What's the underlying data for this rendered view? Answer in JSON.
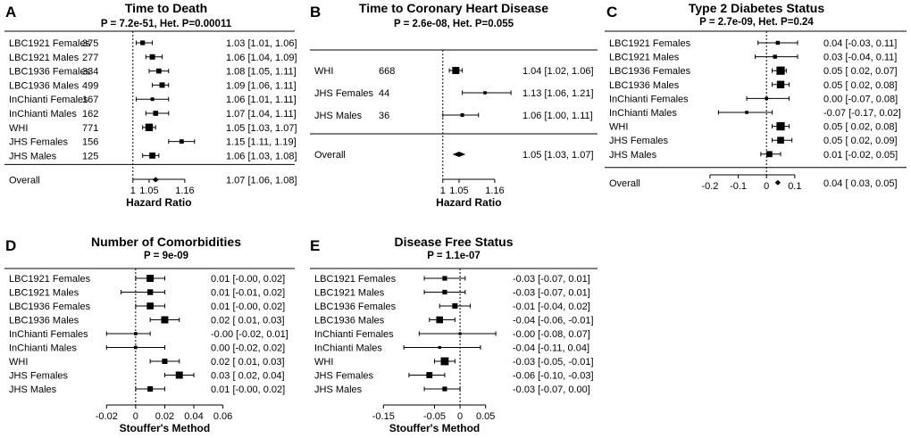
{
  "chart_data": [
    {
      "type": "forest",
      "label": "A",
      "title": "Time to Death",
      "subtitle": "P = 7.2e-51, Het. P=0.00011",
      "xlabel": "Hazard Ratio",
      "ticks": [
        "1",
        "1.05",
        "1.16"
      ],
      "tick_values": [
        1,
        1.05,
        1.16
      ],
      "xlim": [
        0.94,
        1.24
      ],
      "ref": 1,
      "show_n": true,
      "rows": [
        {
          "study": "LBC1921 Females",
          "n": "375",
          "est": 1.03,
          "lo": 1.01,
          "hi": 1.06,
          "text": "1.03 [1.01, 1.06]",
          "w": 0.4
        },
        {
          "study": "LBC1921 Males",
          "n": "277",
          "est": 1.06,
          "lo": 1.04,
          "hi": 1.09,
          "text": "1.06 [1.04, 1.09]",
          "w": 0.5
        },
        {
          "study": "LBC1936 Females",
          "n": "334",
          "est": 1.08,
          "lo": 1.05,
          "hi": 1.11,
          "text": "1.08 [1.05, 1.11]",
          "w": 0.45
        },
        {
          "study": "LBC1936 Males",
          "n": "499",
          "est": 1.09,
          "lo": 1.06,
          "hi": 1.11,
          "text": "1.09 [1.06, 1.11]",
          "w": 0.5
        },
        {
          "study": "InChianti Females",
          "n": "167",
          "est": 1.06,
          "lo": 1.01,
          "hi": 1.11,
          "text": "1.06 [1.01, 1.11]",
          "w": 0.25
        },
        {
          "study": "InChianti Males",
          "n": "162",
          "est": 1.07,
          "lo": 1.04,
          "hi": 1.11,
          "text": "1.07 [1.04, 1.11]",
          "w": 0.45
        },
        {
          "study": "WHI",
          "n": "771",
          "est": 1.05,
          "lo": 1.03,
          "hi": 1.07,
          "text": "1.05 [1.03, 1.07]",
          "w": 0.8
        },
        {
          "study": "JHS Females",
          "n": "156",
          "est": 1.15,
          "lo": 1.11,
          "hi": 1.19,
          "text": "1.15 [1.11, 1.19]",
          "w": 0.35
        },
        {
          "study": "JHS Males",
          "n": "125",
          "est": 1.06,
          "lo": 1.03,
          "hi": 1.08,
          "text": "1.06 [1.03, 1.08]",
          "w": 0.6
        }
      ],
      "overall": {
        "label": "Overall",
        "est": 1.07,
        "lo": 1.06,
        "hi": 1.08,
        "text": "1.07 [1.06, 1.08]"
      }
    },
    {
      "type": "forest",
      "label": "B",
      "title": "Time to Coronary Heart Disease",
      "subtitle": "P = 2.6e-08, Het. P=0.055",
      "xlabel": "Hazard Ratio",
      "ticks": [
        "1",
        "1.05",
        "1.16"
      ],
      "tick_values": [
        1,
        1.05,
        1.16
      ],
      "xlim": [
        0.94,
        1.24
      ],
      "ref": 1,
      "show_n": true,
      "rows": [
        {
          "study": "WHI",
          "n": "668",
          "est": 1.04,
          "lo": 1.02,
          "hi": 1.06,
          "text": "1.04 [1.02, 1.06]",
          "w": 0.75
        },
        {
          "study": "JHS Females",
          "n": "44",
          "est": 1.13,
          "lo": 1.06,
          "hi": 1.21,
          "text": "1.13 [1.06, 1.21]",
          "w": 0.2
        },
        {
          "study": "JHS Males",
          "n": "36",
          "est": 1.06,
          "lo": 1.0,
          "hi": 1.11,
          "text": "1.06 [1.00, 1.11]",
          "w": 0.25
        }
      ],
      "overall": {
        "label": "Overall",
        "est": 1.05,
        "lo": 1.03,
        "hi": 1.07,
        "text": "1.05 [1.03, 1.07]"
      }
    },
    {
      "type": "forest",
      "label": "C",
      "title": "Type 2 Diabetes Status",
      "subtitle": "P = 2.7e-09, Het. P=0.24",
      "xlabel": "",
      "ticks": [
        "-0.2",
        "-0.1",
        "0",
        "0.1"
      ],
      "tick_values": [
        -0.2,
        -0.1,
        0,
        0.1
      ],
      "xlim": [
        -0.225,
        0.17
      ],
      "ref": 0,
      "show_n": false,
      "rows": [
        {
          "study": "LBC1921 Females",
          "est": 0.04,
          "lo": -0.03,
          "hi": 0.11,
          "text": "0.04 [-0.03, 0.11]",
          "w": 0.3
        },
        {
          "study": "LBC1921 Males",
          "est": 0.03,
          "lo": -0.04,
          "hi": 0.11,
          "text": "0.03 [-0.04, 0.11]",
          "w": 0.3
        },
        {
          "study": "LBC1936 Females",
          "est": 0.05,
          "lo": 0.02,
          "hi": 0.07,
          "text": "0.05 [ 0.02, 0.07]",
          "w": 0.9
        },
        {
          "study": "LBC1936 Males",
          "est": 0.05,
          "lo": 0.02,
          "hi": 0.08,
          "text": "0.05 [ 0.02, 0.08]",
          "w": 0.8
        },
        {
          "study": "InChianti Females",
          "est": 0.0,
          "lo": -0.07,
          "hi": 0.08,
          "text": "0.00 [-0.07, 0.08]",
          "w": 0.2
        },
        {
          "study": "InChianti Males",
          "est": -0.07,
          "lo": -0.17,
          "hi": 0.02,
          "text": "-0.07 [-0.17, 0.02]",
          "w": 0.2
        },
        {
          "study": "WHI",
          "est": 0.05,
          "lo": 0.02,
          "hi": 0.08,
          "text": "0.05 [ 0.02, 0.08]",
          "w": 0.9
        },
        {
          "study": "JHS Females",
          "est": 0.05,
          "lo": 0.02,
          "hi": 0.09,
          "text": "0.05 [ 0.02, 0.09]",
          "w": 0.7
        },
        {
          "study": "JHS Males",
          "est": 0.01,
          "lo": -0.02,
          "hi": 0.05,
          "text": "0.01 [-0.02, 0.05]",
          "w": 0.6
        }
      ],
      "overall": {
        "label": "Overall",
        "est": 0.04,
        "lo": 0.03,
        "hi": 0.05,
        "text": "0.04 [ 0.03, 0.05]"
      }
    },
    {
      "type": "forest",
      "label": "D",
      "title": "Number of Comorbidities",
      "subtitle": "P = 9e-09",
      "xlabel": "Stouffer's Method",
      "ticks": [
        "-0.02",
        "0",
        "0.02",
        "0.04",
        "0.06"
      ],
      "tick_values": [
        -0.02,
        0,
        0.02,
        0.04,
        0.06
      ],
      "xlim": [
        -0.03,
        0.067
      ],
      "ref": 0,
      "show_n": false,
      "rows": [
        {
          "study": "LBC1921 Females",
          "est": 0.01,
          "lo": -0.0,
          "hi": 0.02,
          "text": "0.01 [-0.00, 0.02]",
          "w": 0.75
        },
        {
          "study": "LBC1921 Males",
          "est": 0.01,
          "lo": -0.01,
          "hi": 0.02,
          "text": "0.01 [-0.01, 0.02]",
          "w": 0.55
        },
        {
          "study": "LBC1936 Females",
          "est": 0.01,
          "lo": -0.0,
          "hi": 0.02,
          "text": "0.01 [-0.00, 0.02]",
          "w": 0.7
        },
        {
          "study": "LBC1936 Males",
          "est": 0.02,
          "lo": 0.01,
          "hi": 0.03,
          "text": "0.02 [ 0.01, 0.03]",
          "w": 0.75
        },
        {
          "study": "InChianti Females",
          "est": -0.0,
          "lo": -0.02,
          "hi": 0.01,
          "text": "-0.00 [-0.02, 0.01]",
          "w": 0.2
        },
        {
          "study": "InChianti Males",
          "est": 0.0,
          "lo": -0.02,
          "hi": 0.02,
          "text": "0.00 [-0.02, 0.02]",
          "w": 0.2
        },
        {
          "study": "WHI",
          "est": 0.02,
          "lo": 0.01,
          "hi": 0.03,
          "text": "0.02 [ 0.01, 0.03]",
          "w": 0.5
        },
        {
          "study": "JHS Females",
          "est": 0.03,
          "lo": 0.02,
          "hi": 0.04,
          "text": "0.03 [ 0.02, 0.04]",
          "w": 0.75
        },
        {
          "study": "JHS Males",
          "est": 0.01,
          "lo": -0.0,
          "hi": 0.02,
          "text": "0.01 [-0.00, 0.02]",
          "w": 0.5
        }
      ],
      "overall": null
    },
    {
      "type": "forest",
      "label": "E",
      "title": "Disease Free Status",
      "subtitle": "P = 1.1e-07",
      "xlabel": "Stouffer's Method",
      "ticks": [
        "-0.15",
        "-0.05",
        "0",
        "0.05"
      ],
      "tick_values": [
        -0.15,
        -0.05,
        0,
        0.05
      ],
      "xlim": [
        -0.175,
        0.075
      ],
      "ref": 0,
      "show_n": false,
      "rows": [
        {
          "study": "LBC1921 Females",
          "est": -0.03,
          "lo": -0.07,
          "hi": 0.01,
          "text": "-0.03 [-0.07,  0.01]",
          "w": 0.4
        },
        {
          "study": "LBC1921 Males",
          "est": -0.03,
          "lo": -0.07,
          "hi": 0.01,
          "text": "-0.03 [-0.07,  0.01]",
          "w": 0.4
        },
        {
          "study": "LBC1936 Females",
          "est": -0.01,
          "lo": -0.04,
          "hi": 0.02,
          "text": "-0.01 [-0.04,  0.02]",
          "w": 0.5
        },
        {
          "study": "LBC1936 Males",
          "est": -0.04,
          "lo": -0.06,
          "hi": -0.01,
          "text": "-0.04 [-0.06, -0.01]",
          "w": 0.7
        },
        {
          "study": "InChianti Females",
          "est": -0.0,
          "lo": -0.08,
          "hi": 0.07,
          "text": "-0.00 [-0.08,  0.07]",
          "w": 0.15
        },
        {
          "study": "InChianti Males",
          "est": -0.04,
          "lo": -0.11,
          "hi": 0.04,
          "text": "-0.04 [-0.11,  0.04]",
          "w": 0.15
        },
        {
          "study": "WHI",
          "est": -0.03,
          "lo": -0.05,
          "hi": -0.01,
          "text": "-0.03 [-0.05, -0.01]",
          "w": 0.85
        },
        {
          "study": "JHS Females",
          "est": -0.06,
          "lo": -0.1,
          "hi": -0.03,
          "text": "-0.06 [-0.10, -0.03]",
          "w": 0.6
        },
        {
          "study": "JHS Males",
          "est": -0.03,
          "lo": -0.07,
          "hi": 0.0,
          "text": "-0.03 [-0.07,  0.00]",
          "w": 0.4
        }
      ],
      "overall": null
    }
  ]
}
